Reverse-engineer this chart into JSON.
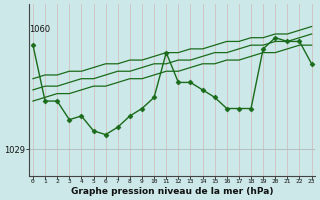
{
  "title": "Graphe pression niveau de la mer (hPa)",
  "hours": [
    0,
    1,
    2,
    3,
    4,
    5,
    6,
    7,
    8,
    9,
    10,
    11,
    12,
    13,
    14,
    15,
    16,
    17,
    18,
    19,
    20,
    21,
    22,
    23
  ],
  "pressure": [
    1057,
    1042,
    1042,
    1037,
    1038,
    1034,
    1033,
    1035,
    1038,
    1040,
    1043,
    1055,
    1047,
    1047,
    1045,
    1043,
    1040,
    1040,
    1040,
    1056,
    1059,
    1058,
    1058,
    1052
  ],
  "trend_line1": [
    1042,
    1043,
    1044,
    1044,
    1045,
    1046,
    1046,
    1047,
    1048,
    1048,
    1049,
    1050,
    1050,
    1051,
    1052,
    1052,
    1053,
    1053,
    1054,
    1055,
    1055,
    1056,
    1057,
    1057
  ],
  "trend_line2": [
    1045,
    1046,
    1046,
    1047,
    1048,
    1048,
    1049,
    1050,
    1050,
    1051,
    1052,
    1052,
    1053,
    1053,
    1054,
    1055,
    1055,
    1056,
    1057,
    1057,
    1058,
    1058,
    1059,
    1060
  ],
  "trend_line3": [
    1048,
    1049,
    1049,
    1050,
    1050,
    1051,
    1052,
    1052,
    1053,
    1053,
    1054,
    1055,
    1055,
    1056,
    1056,
    1057,
    1058,
    1058,
    1059,
    1059,
    1060,
    1060,
    1061,
    1062
  ],
  "line_color": "#1a6b1a",
  "bg_color": "#cce8e8",
  "grid_v_color": "#b8d0d0",
  "grid_h_color": "#b0b8b8",
  "ytick_value": 1029,
  "ytop_value": 1060,
  "ylim_min": 1022,
  "ylim_max": 1068,
  "xlim_min": -0.3,
  "xlim_max": 23.3
}
